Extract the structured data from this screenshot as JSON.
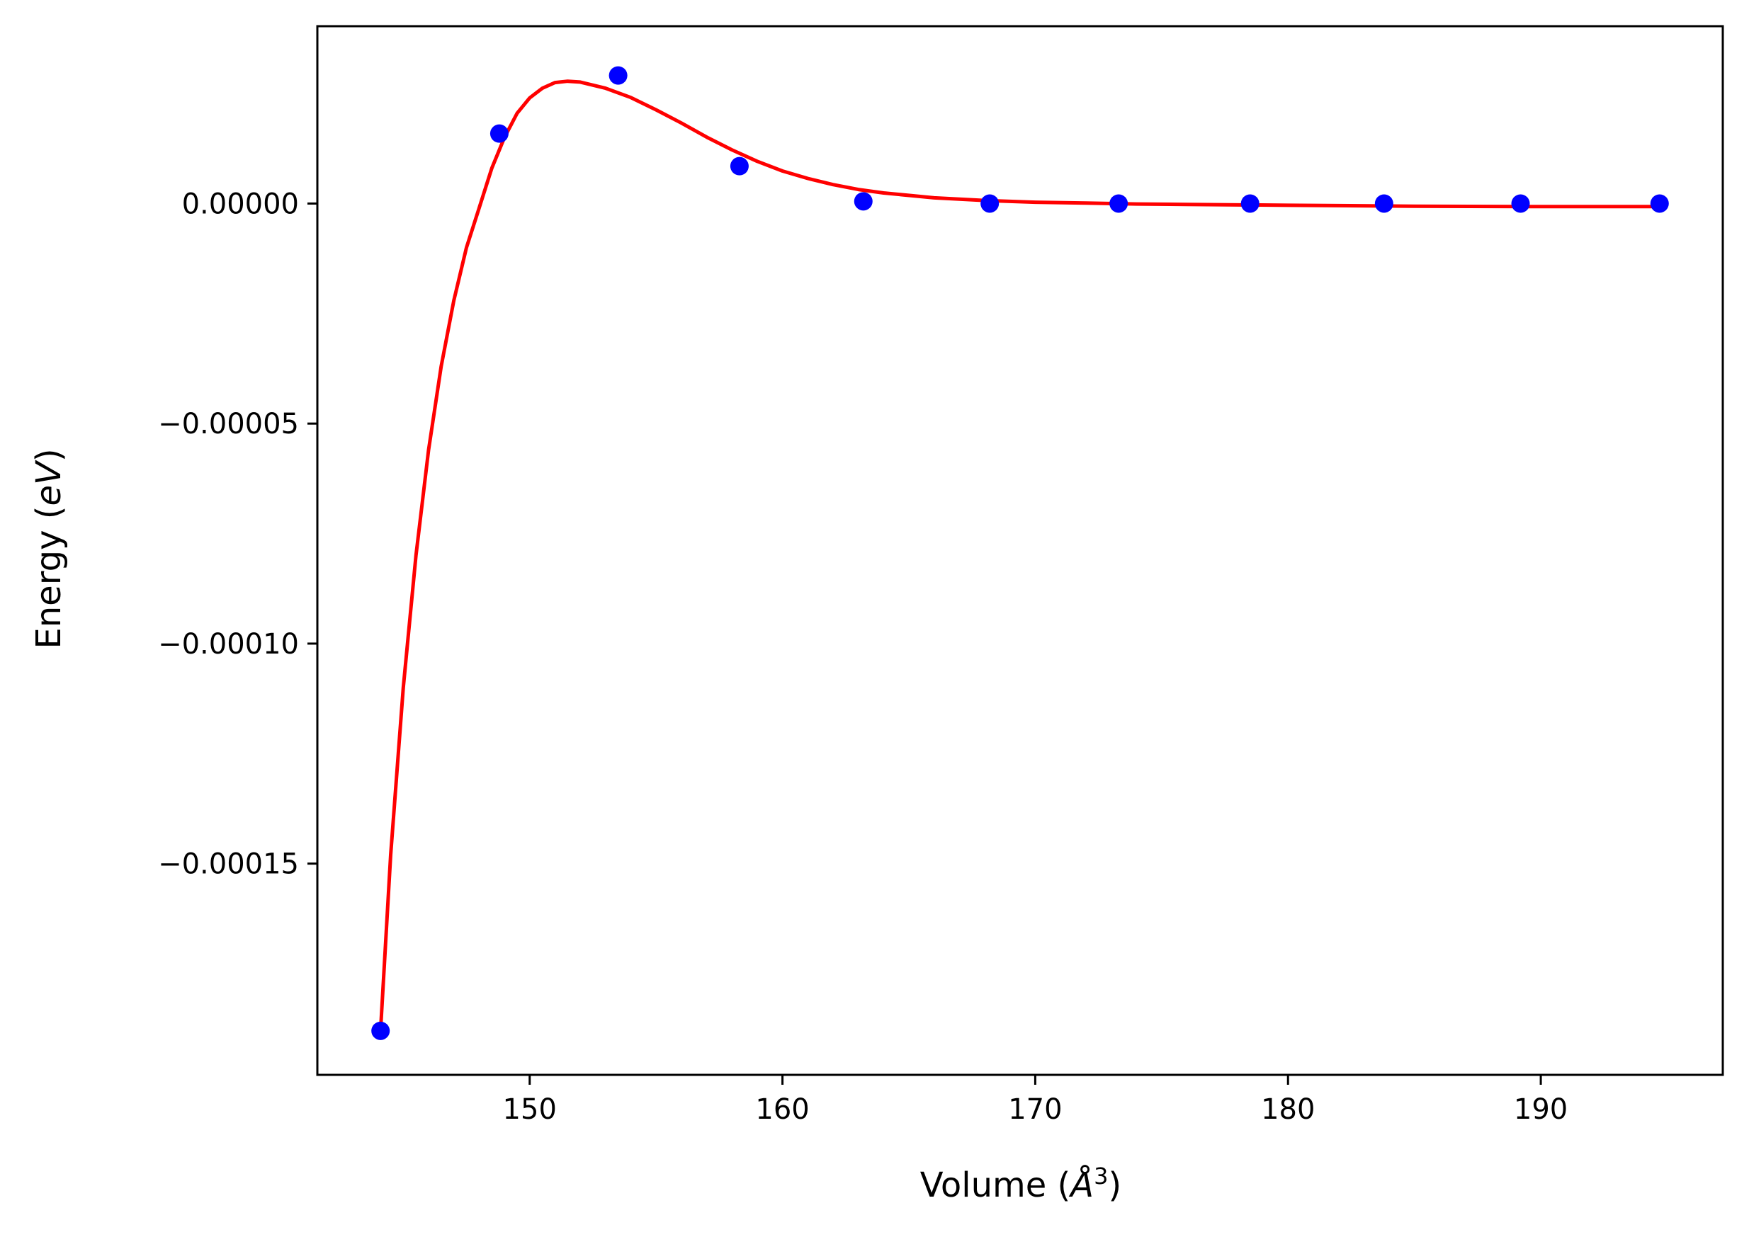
{
  "chart_data": {
    "type": "scatter",
    "title": "",
    "xlabel": {
      "prefix": "Volume (",
      "symbol": "Å",
      "exponent": "3",
      "suffix": ")"
    },
    "ylabel": {
      "prefix": "Energy (",
      "unit": "eV",
      "suffix": ")"
    },
    "xlim": [
      141.6,
      197.2
    ],
    "ylim": [
      -0.000198,
      4.03e-05
    ],
    "x_ticks": [
      150,
      160,
      170,
      180,
      190
    ],
    "x_tick_labels": [
      "150",
      "160",
      "170",
      "180",
      "190"
    ],
    "y_ticks": [
      0.0,
      -5e-05,
      -0.0001,
      -0.00015
    ],
    "y_tick_labels": [
      "0.00000",
      "−0.00005",
      "−0.00010",
      "−0.00015"
    ],
    "grid": false,
    "legend": "none",
    "series": [
      {
        "kind": "points",
        "color": "#0000ff",
        "x": [
          144.1,
          148.8,
          153.5,
          158.3,
          163.2,
          168.2,
          173.3,
          178.5,
          183.8,
          189.2,
          194.7
        ],
        "y": [
          -0.000188,
          1.59e-05,
          2.91e-05,
          8.5e-06,
          5e-07,
          0.0,
          0.0,
          0.0,
          0.0,
          0.0,
          0.0
        ]
      },
      {
        "kind": "line",
        "color": "#ff0000",
        "x": [
          144.1,
          144.5,
          145.0,
          145.5,
          146.0,
          146.5,
          147.0,
          147.5,
          148.0,
          148.5,
          149.0,
          149.5,
          150.0,
          150.5,
          151.0,
          151.5,
          152.0,
          153.0,
          154.0,
          155.0,
          156.0,
          157.0,
          158.0,
          159.0,
          160.0,
          161.0,
          162.0,
          163.0,
          164.0,
          166.0,
          168.0,
          170.0,
          172.0,
          174.0,
          176.0,
          180.0,
          185.0,
          190.0,
          194.7
        ],
        "y": [
          -0.000188,
          -0.000148,
          -0.00011,
          -8e-05,
          -5.6e-05,
          -3.7e-05,
          -2.2e-05,
          -1e-05,
          -1e-06,
          8e-06,
          1.5e-05,
          2.05e-05,
          2.4e-05,
          2.62e-05,
          2.75e-05,
          2.78e-05,
          2.76e-05,
          2.62e-05,
          2.41e-05,
          2.13e-05,
          1.83e-05,
          1.51e-05,
          1.22e-05,
          9.6e-06,
          7.4e-06,
          5.7e-06,
          4.3e-06,
          3.2e-06,
          2.4e-06,
          1.3e-06,
          7e-07,
          3e-07,
          1e-07,
          -1e-07,
          -2e-07,
          -4e-07,
          -6e-07,
          -7e-07,
          -7e-07
        ]
      }
    ]
  }
}
